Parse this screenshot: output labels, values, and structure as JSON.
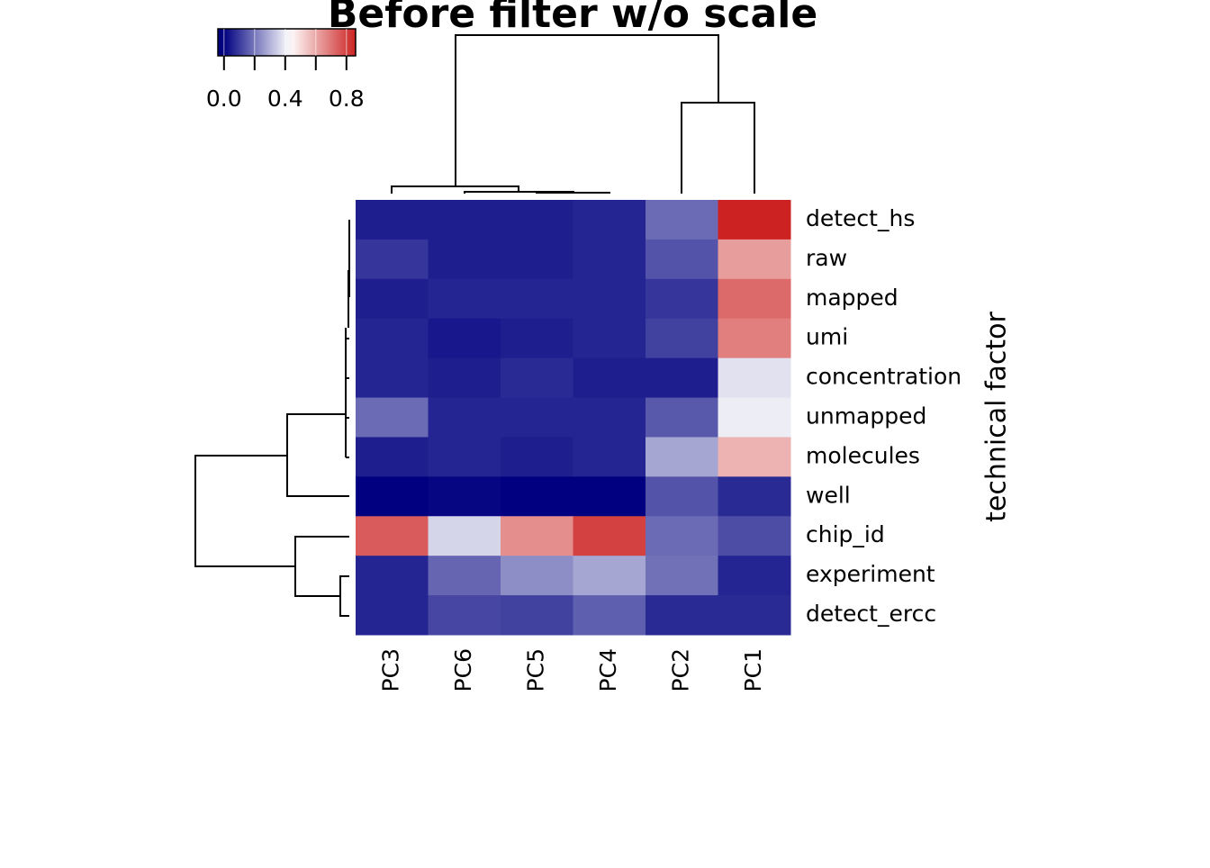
{
  "chart_data": {
    "type": "heatmap",
    "title": "Before filter w/o scale",
    "ylabel": "technical factor",
    "columns": [
      "PC3",
      "PC6",
      "PC5",
      "PC4",
      "PC2",
      "PC1"
    ],
    "rows": [
      "detect_hs",
      "raw",
      "mapped",
      "umi",
      "concentration",
      "unmapped",
      "molecules",
      "well",
      "chip_id",
      "experiment",
      "detect_ercc"
    ],
    "values": [
      [
        0.05,
        0.05,
        0.05,
        0.06,
        0.18,
        0.86
      ],
      [
        0.09,
        0.05,
        0.05,
        0.06,
        0.14,
        0.62
      ],
      [
        0.05,
        0.06,
        0.06,
        0.06,
        0.09,
        0.72
      ],
      [
        0.06,
        0.04,
        0.05,
        0.06,
        0.11,
        0.68
      ],
      [
        0.06,
        0.05,
        0.07,
        0.05,
        0.05,
        0.38
      ],
      [
        0.18,
        0.06,
        0.06,
        0.06,
        0.15,
        0.4
      ],
      [
        0.05,
        0.06,
        0.05,
        0.06,
        0.28,
        0.58
      ],
      [
        0.0,
        0.01,
        0.0,
        0.0,
        0.14,
        0.07
      ],
      [
        0.75,
        0.36,
        0.65,
        0.8,
        0.18,
        0.13
      ],
      [
        0.06,
        0.17,
        0.24,
        0.28,
        0.19,
        0.06
      ],
      [
        0.06,
        0.12,
        0.11,
        0.16,
        0.07,
        0.07
      ]
    ],
    "colors": [
      "#000080",
      "#ffffff",
      "#cc2222"
    ],
    "color_stops": [
      0,
      0.43,
      0.86
    ],
    "clim": [
      -0.04,
      0.86
    ],
    "colorbar_ticks": [
      {
        "value": 0,
        "label": "0.0"
      },
      {
        "value": 0.4,
        "label": "0.4"
      },
      {
        "value": 0.8,
        "label": "0.8"
      }
    ],
    "colorbar_minor_ticks": [
      0.2,
      0.6
    ]
  }
}
